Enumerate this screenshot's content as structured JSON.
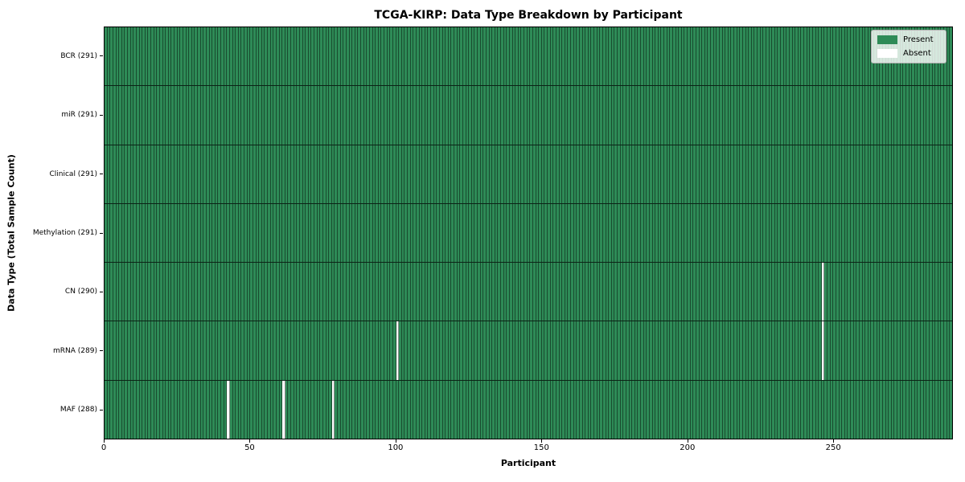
{
  "colors": {
    "present": "#2e8b57",
    "absent": "#ffffff",
    "cell_edge": "rgba(0,0,0,0.45)",
    "row_separator": "rgba(0,0,0,0.75)",
    "axes_border": "#000000",
    "legend_border": "#b0b0b0"
  },
  "chart_data": {
    "type": "heatmap",
    "title": "TCGA-KIRP: Data Type Breakdown by Participant",
    "xlabel": "Participant",
    "ylabel": "Data Type (Total Sample Count)",
    "xlim": [
      0,
      291
    ],
    "n_participants": 291,
    "x_ticks": [
      0,
      50,
      100,
      150,
      200,
      250
    ],
    "grid": false,
    "rows": [
      {
        "label": "BCR (291)",
        "data_type": "BCR",
        "total": 291,
        "absent_participants": []
      },
      {
        "label": "miR (291)",
        "data_type": "miR",
        "total": 291,
        "absent_participants": []
      },
      {
        "label": "Clinical (291)",
        "data_type": "Clinical",
        "total": 291,
        "absent_participants": []
      },
      {
        "label": "Methylation (291)",
        "data_type": "Methylation",
        "total": 291,
        "absent_participants": []
      },
      {
        "label": "CN (290)",
        "data_type": "CN",
        "total": 290,
        "absent_participants": [
          246
        ]
      },
      {
        "label": "mRNA (289)",
        "data_type": "mRNA",
        "total": 289,
        "absent_participants": [
          100,
          246
        ]
      },
      {
        "label": "MAF (288)",
        "data_type": "MAF",
        "total": 288,
        "absent_participants": [
          42,
          61,
          78
        ]
      }
    ],
    "legend": [
      {
        "label": "Present",
        "color": "#2e8b57"
      },
      {
        "label": "Absent",
        "color": "#ffffff"
      }
    ],
    "legend_position": "upper right"
  }
}
